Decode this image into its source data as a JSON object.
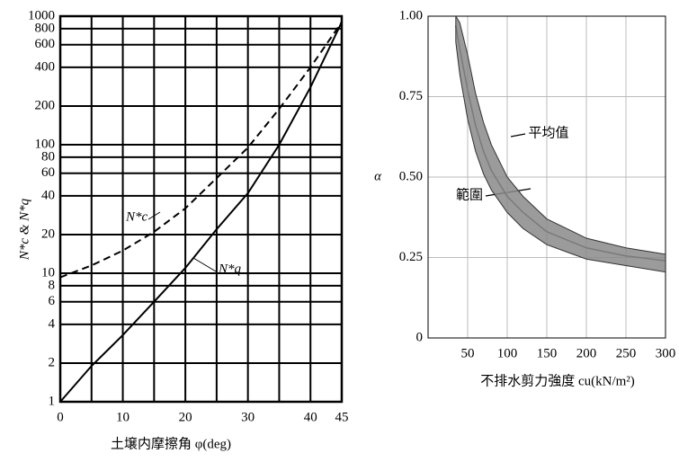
{
  "chart_data": [
    {
      "type": "line",
      "ylabel": "N*c & N*q",
      "xlabel": "土壌内摩擦角 φ(deg)",
      "x": [
        0,
        5,
        10,
        15,
        20,
        25,
        30,
        35,
        40,
        45
      ],
      "series": [
        {
          "name": "N*c",
          "color": "#000000",
          "dash": true,
          "values": [
            9.3,
            11.5,
            15,
            21,
            32,
            55,
            95,
            190,
            400,
            900
          ]
        },
        {
          "name": "N*q",
          "color": "#000000",
          "dash": false,
          "values": [
            1,
            1.9,
            3.3,
            6,
            11,
            22,
            42,
            100,
            280,
            900
          ]
        }
      ],
      "xlim": [
        0,
        45
      ],
      "xticks": [
        0,
        10,
        20,
        30,
        40,
        45
      ],
      "x_minor_grid": [
        5,
        15,
        25,
        35
      ],
      "ylim": [
        1,
        1000
      ],
      "yticks": [
        1,
        2,
        4,
        6,
        8,
        10,
        20,
        40,
        60,
        80,
        100,
        200,
        400,
        600,
        800,
        1000
      ],
      "log_y": true,
      "grid": true
    },
    {
      "type": "band",
      "ylabel": "α",
      "xlabel": "不排水剪力強度 cu(kN/m²)",
      "x": [
        35,
        40,
        50,
        60,
        70,
        80,
        100,
        120,
        150,
        200,
        250,
        300
      ],
      "series": [
        {
          "name": "平均值",
          "color": "#222222",
          "values": [
            0.97,
            0.9,
            0.77,
            0.66,
            0.58,
            0.52,
            0.44,
            0.39,
            0.33,
            0.28,
            0.255,
            0.24
          ]
        },
        {
          "name": "範圍",
          "color": "#8a8a8a",
          "upper": [
            1.0,
            0.98,
            0.88,
            0.76,
            0.67,
            0.6,
            0.5,
            0.44,
            0.37,
            0.31,
            0.28,
            0.26
          ],
          "lower": [
            0.92,
            0.82,
            0.68,
            0.58,
            0.51,
            0.46,
            0.39,
            0.34,
            0.29,
            0.245,
            0.225,
            0.205
          ]
        }
      ],
      "xlim": [
        0,
        300
      ],
      "xticks": [
        50,
        100,
        150,
        200,
        250,
        300
      ],
      "ylim": [
        0,
        1
      ],
      "yticks": [
        0,
        0.25,
        {
          "value": 0.5,
          "label": "0.50"
        },
        0.75,
        {
          "value": 1,
          "label": "1.00"
        }
      ],
      "grid": true
    }
  ]
}
